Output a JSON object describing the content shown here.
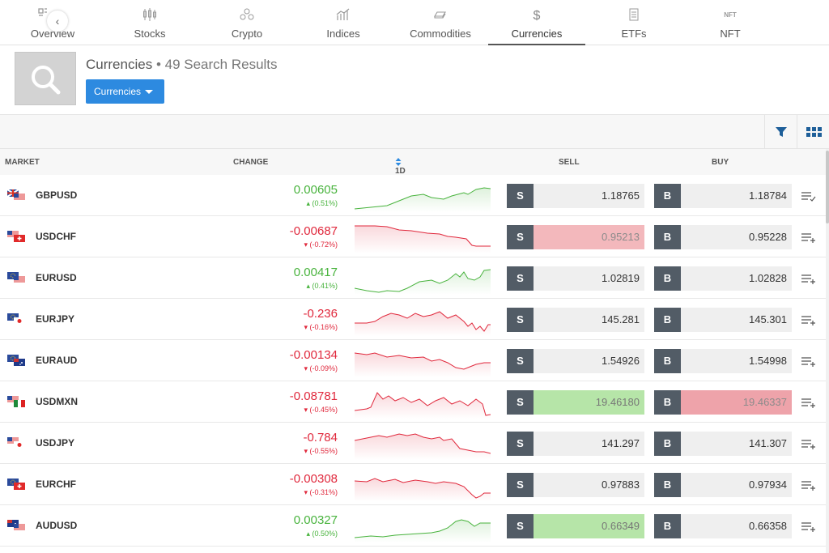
{
  "tabs": [
    {
      "label": "Overview",
      "icon": "overview-icon",
      "active": false
    },
    {
      "label": "Stocks",
      "icon": "candlestick-icon",
      "active": false
    },
    {
      "label": "Crypto",
      "icon": "crypto-icon",
      "active": false
    },
    {
      "label": "Indices",
      "icon": "chart-up-icon",
      "active": false
    },
    {
      "label": "Commodities",
      "icon": "ingot-icon",
      "active": false
    },
    {
      "label": "Currencies",
      "icon": "dollar-icon",
      "active": true
    },
    {
      "label": "ETFs",
      "icon": "document-icon",
      "active": false
    },
    {
      "label": "NFT",
      "icon": "nft-icon",
      "active": false
    }
  ],
  "header": {
    "title": "Currencies",
    "results": "49 Search Results",
    "dropdown_label": "Currencies"
  },
  "columns": {
    "market": "MARKET",
    "change": "CHANGE",
    "period": "1D",
    "sell": "SELL",
    "buy": "BUY"
  },
  "rows": [
    {
      "symbol": "GBPUSD",
      "change": "0.00605",
      "pct": "(0.51%)",
      "dir": "up",
      "sell": "1.18765",
      "buy": "1.18784",
      "sell_state": "neutral",
      "buy_state": "neutral",
      "watched": true
    },
    {
      "symbol": "USDCHF",
      "change": "-0.00687",
      "pct": "(-0.72%)",
      "dir": "down",
      "sell": "0.95213",
      "buy": "0.95228",
      "sell_state": "down",
      "buy_state": "neutral",
      "watched": false
    },
    {
      "symbol": "EURUSD",
      "change": "0.00417",
      "pct": "(0.41%)",
      "dir": "up",
      "sell": "1.02819",
      "buy": "1.02828",
      "sell_state": "neutral",
      "buy_state": "neutral",
      "watched": false
    },
    {
      "symbol": "EURJPY",
      "change": "-0.236",
      "pct": "(-0.16%)",
      "dir": "down",
      "sell": "145.281",
      "buy": "145.301",
      "sell_state": "neutral",
      "buy_state": "neutral",
      "watched": false
    },
    {
      "symbol": "EURAUD",
      "change": "-0.00134",
      "pct": "(-0.09%)",
      "dir": "down",
      "sell": "1.54926",
      "buy": "1.54998",
      "sell_state": "neutral",
      "buy_state": "neutral",
      "watched": false
    },
    {
      "symbol": "USDMXN",
      "change": "-0.08781",
      "pct": "(-0.45%)",
      "dir": "down",
      "sell": "19.46180",
      "buy": "19.46337",
      "sell_state": "up",
      "buy_state": "down",
      "watched": false
    },
    {
      "symbol": "USDJPY",
      "change": "-0.784",
      "pct": "(-0.55%)",
      "dir": "down",
      "sell": "141.297",
      "buy": "141.307",
      "sell_state": "neutral",
      "buy_state": "neutral",
      "watched": false
    },
    {
      "symbol": "EURCHF",
      "change": "-0.00308",
      "pct": "(-0.31%)",
      "dir": "down",
      "sell": "0.97883",
      "buy": "0.97934",
      "sell_state": "neutral",
      "buy_state": "neutral",
      "watched": false
    },
    {
      "symbol": "AUDUSD",
      "change": "0.00327",
      "pct": "(0.50%)",
      "dir": "up",
      "sell": "0.66349",
      "buy": "0.66358",
      "sell_state": "up",
      "buy_state": "neutral",
      "watched": false
    }
  ],
  "buttons": {
    "sell": "S",
    "buy": "B"
  },
  "colors": {
    "up": "#48b33d",
    "down": "#e0283c",
    "accent": "#2d8ae0"
  }
}
